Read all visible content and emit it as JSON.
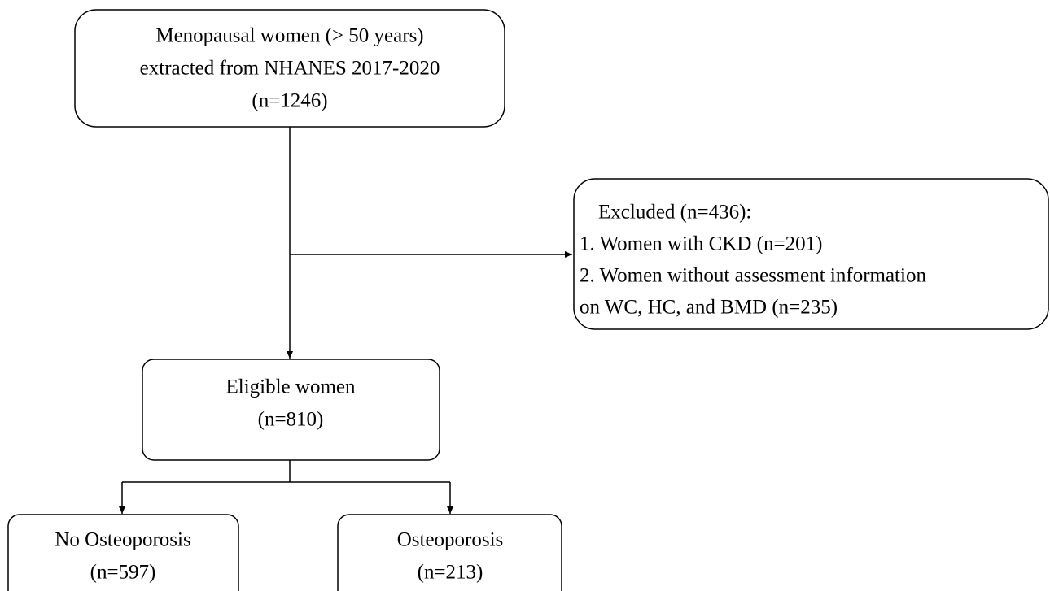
{
  "nodes": [
    {
      "lines": [
        "Menopausal women (> 50 years)",
        "extracted from NHANES 2017-2020",
        "(n=1246)"
      ]
    },
    {
      "lines": [
        "Excluded (n=436):",
        "1. Women with CKD (n=201)",
        "2. Women without assessment information",
        "on WC, HC, and BMD (n=235)"
      ]
    },
    {
      "lines": [
        "Eligible women",
        "(n=810)"
      ]
    },
    {
      "lines": [
        "No Osteoporosis",
        "(n=597)"
      ]
    },
    {
      "lines": [
        "Osteoporosis",
        "(n=213)"
      ]
    }
  ]
}
